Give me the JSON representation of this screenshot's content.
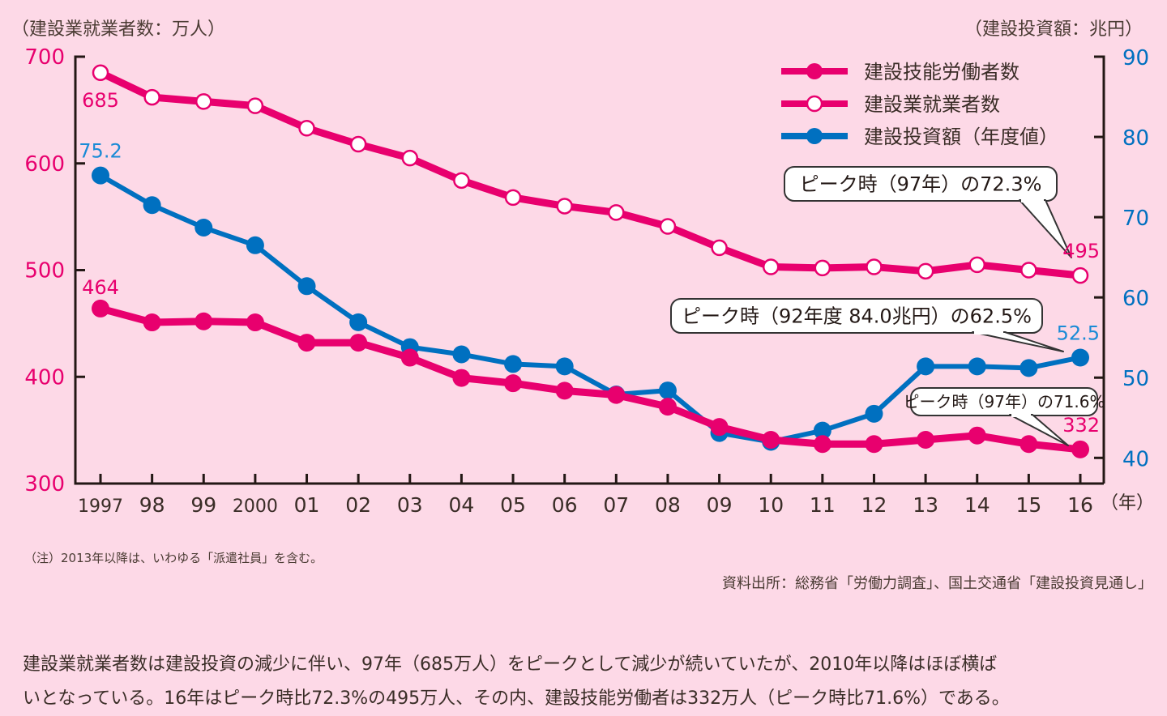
{
  "chart_data": {
    "type": "line",
    "left_axis": {
      "label": "（建設業就業者数：万人）",
      "ticks": [
        300,
        400,
        500,
        600,
        700
      ],
      "range": [
        300,
        700
      ],
      "color": "#e8006e"
    },
    "right_axis": {
      "label": "（建設投資額：兆円）",
      "ticks": [
        40,
        50,
        60,
        70,
        80,
        90
      ],
      "range": [
        36.8,
        90
      ],
      "color": "#0070c0"
    },
    "x_unit": "（年）",
    "categories": [
      "1997",
      "98",
      "99",
      "2000",
      "01",
      "02",
      "03",
      "04",
      "05",
      "06",
      "07",
      "08",
      "09",
      "10",
      "11",
      "12",
      "13",
      "14",
      "15",
      "16"
    ],
    "series": [
      {
        "name": "建設技能労働者数",
        "axis": "left",
        "marker": "filled",
        "color": "#e8006e",
        "values": [
          464,
          451,
          452,
          451,
          432,
          432,
          418,
          399,
          394,
          387,
          383,
          372,
          353,
          341,
          337,
          337,
          341,
          345,
          337,
          332
        ]
      },
      {
        "name": "建設業就業者数",
        "axis": "left",
        "marker": "hollow",
        "color": "#e8006e",
        "values": [
          685,
          662,
          658,
          654,
          633,
          618,
          605,
          584,
          568,
          560,
          554,
          541,
          521,
          503,
          502,
          503,
          499,
          505,
          500,
          495
        ]
      },
      {
        "name": "建設投資額（年度値）",
        "axis": "right",
        "marker": "filled",
        "color": "#0070c0",
        "values": [
          75.2,
          71.5,
          68.7,
          66.5,
          61.4,
          56.9,
          53.8,
          52.9,
          51.7,
          51.4,
          47.9,
          48.4,
          43.1,
          42.0,
          43.4,
          45.5,
          51.4,
          51.4,
          51.2,
          52.5
        ]
      }
    ],
    "data_labels": [
      {
        "series": 1,
        "index": 0,
        "text": "685"
      },
      {
        "series": 0,
        "index": 0,
        "text": "464"
      },
      {
        "series": 2,
        "index": 0,
        "text": "75.2"
      },
      {
        "series": 1,
        "index": 19,
        "text": "495"
      },
      {
        "series": 2,
        "index": 19,
        "text": "52.5"
      },
      {
        "series": 0,
        "index": 19,
        "text": "332"
      }
    ],
    "annotations": [
      {
        "text": "ピーク時（97年）の72.3%",
        "target_series": 1
      },
      {
        "text": "ピーク時（92年度 84.0兆円）の62.5%",
        "target_series": 2
      },
      {
        "text": "ピーク時（97年）の71.6%",
        "target_series": 0
      }
    ],
    "legend_position": "top-right"
  },
  "note": "（注）2013年以降は、いわゆる「派遣社員」を含む。",
  "source": "資料出所：総務省「労働力調査」、国土交通省「建設投資見通し」",
  "body_text": [
    "建設業就業者数は建設投資の減少に伴い、97年（685万人）をピークとして減少が続いていたが、2010年以降はほぼ横ば",
    "いとなっている。16年はピーク時比72.3%の495万人、その内、建設技能労働者は332万人（ピーク時比71.6%）である。"
  ]
}
